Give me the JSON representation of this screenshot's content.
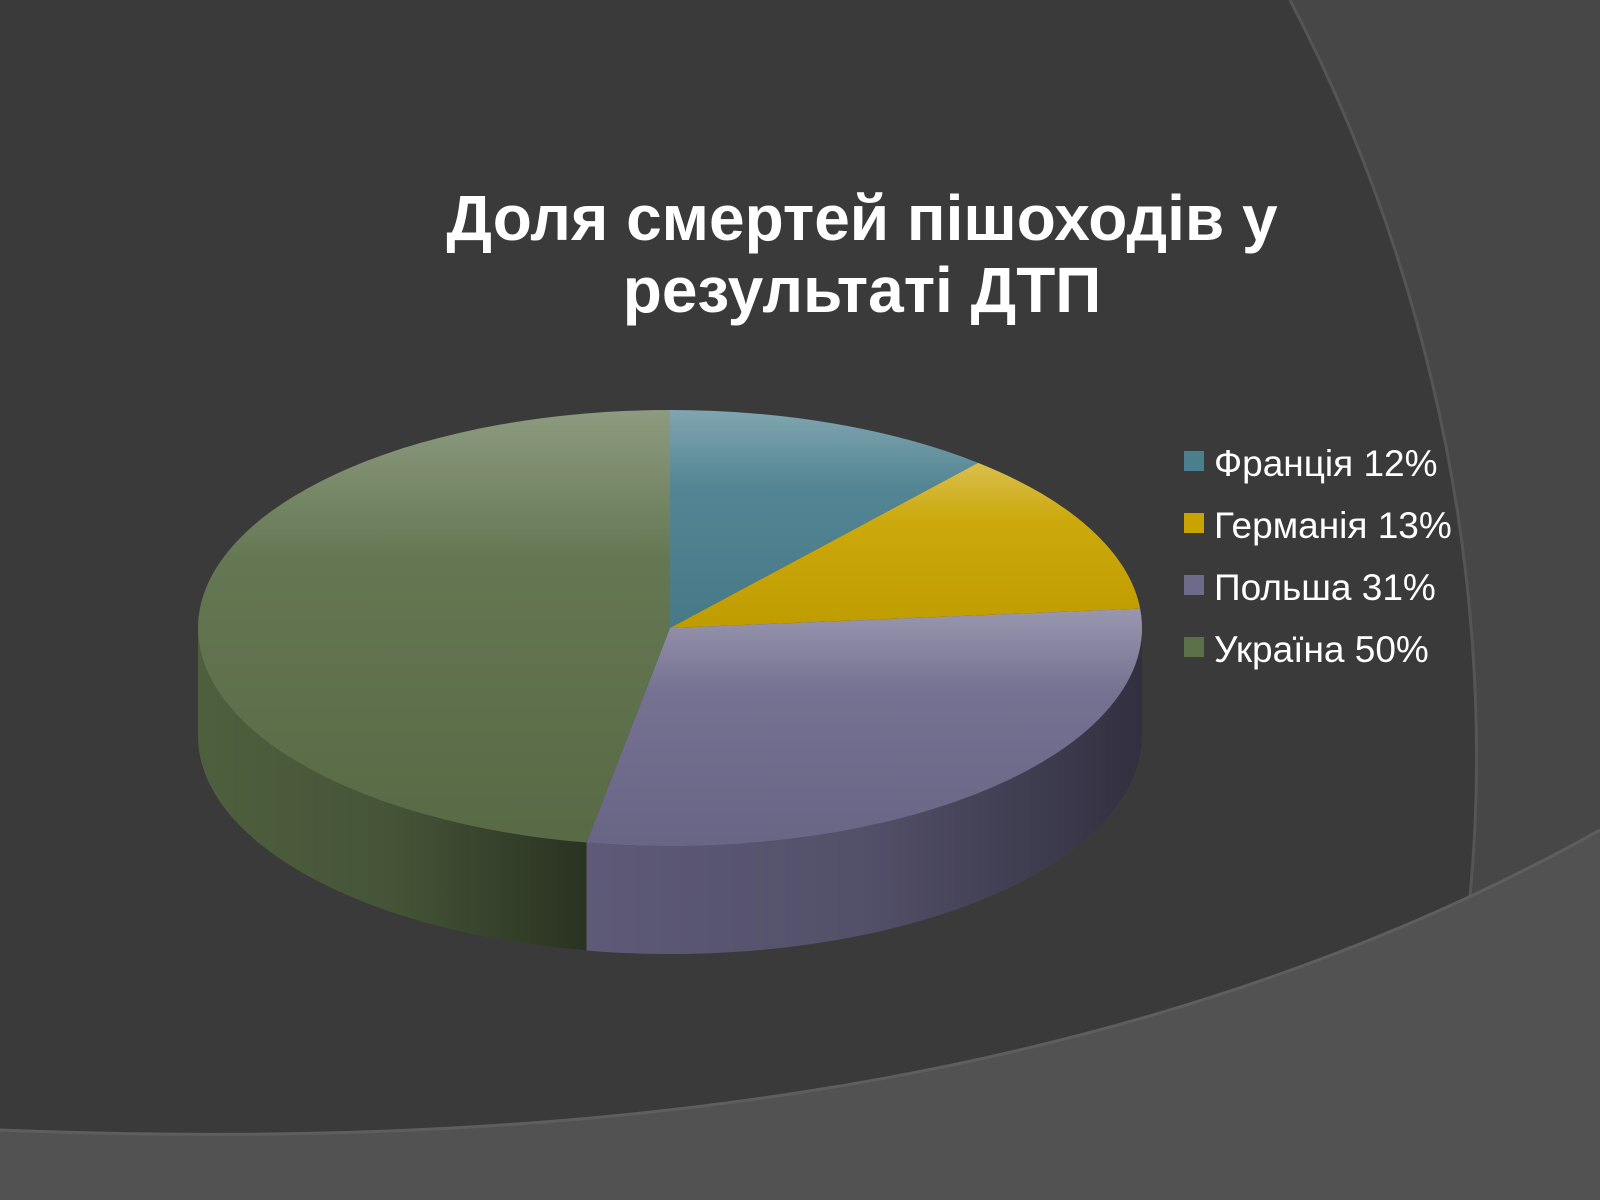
{
  "chart_data": {
    "type": "pie",
    "title": "Доля смертей пішоходів у результаті ДТП",
    "title_lines": [
      "Доля смертей пішоходів у",
      "результаті ДТП"
    ],
    "categories": [
      "Франція",
      "Германія",
      "Польша",
      "Україна"
    ],
    "values": [
      12,
      13,
      31,
      50
    ],
    "legend": [
      "Франція 12%",
      "Германія 13%",
      "Польша 31%",
      "Україна 50%"
    ],
    "colors": [
      "#4a7f8e",
      "#c9a400",
      "#6e6a8c",
      "#5c7049"
    ],
    "legend_position": "right",
    "style": "3d"
  },
  "theme": {
    "background": "#3b3b3b",
    "arc_color": "#4f4f4f"
  }
}
